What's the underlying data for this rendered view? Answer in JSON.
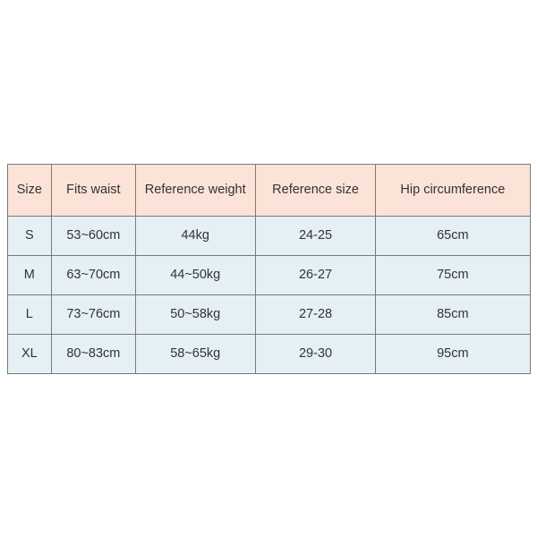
{
  "table": {
    "type": "table",
    "header_bg": "#fbe3d8",
    "body_bg": "#e5f0f5",
    "border_color": "#7a7a7a",
    "font_size": 14.5,
    "text_color": "#333333",
    "header_row_height": 58,
    "body_row_height": 44,
    "columns": [
      {
        "key": "size",
        "label": "Size",
        "width_pct": 8.5
      },
      {
        "key": "waist",
        "label": "Fits waist",
        "width_pct": 16
      },
      {
        "key": "weight",
        "label": "Reference weight",
        "width_pct": 23
      },
      {
        "key": "ref",
        "label": "Reference size",
        "width_pct": 23
      },
      {
        "key": "hip",
        "label": "Hip circumference",
        "width_pct": 29.5
      }
    ],
    "rows": [
      {
        "size": "S",
        "waist": "53~60cm",
        "weight": "44kg",
        "ref": "24-25",
        "hip": "65cm"
      },
      {
        "size": "M",
        "waist": "63~70cm",
        "weight": "44~50kg",
        "ref": "26-27",
        "hip": "75cm"
      },
      {
        "size": "L",
        "waist": "73~76cm",
        "weight": "50~58kg",
        "ref": "27-28",
        "hip": "85cm"
      },
      {
        "size": "XL",
        "waist": "80~83cm",
        "weight": "58~65kg",
        "ref": "29-30",
        "hip": "95cm"
      }
    ]
  }
}
